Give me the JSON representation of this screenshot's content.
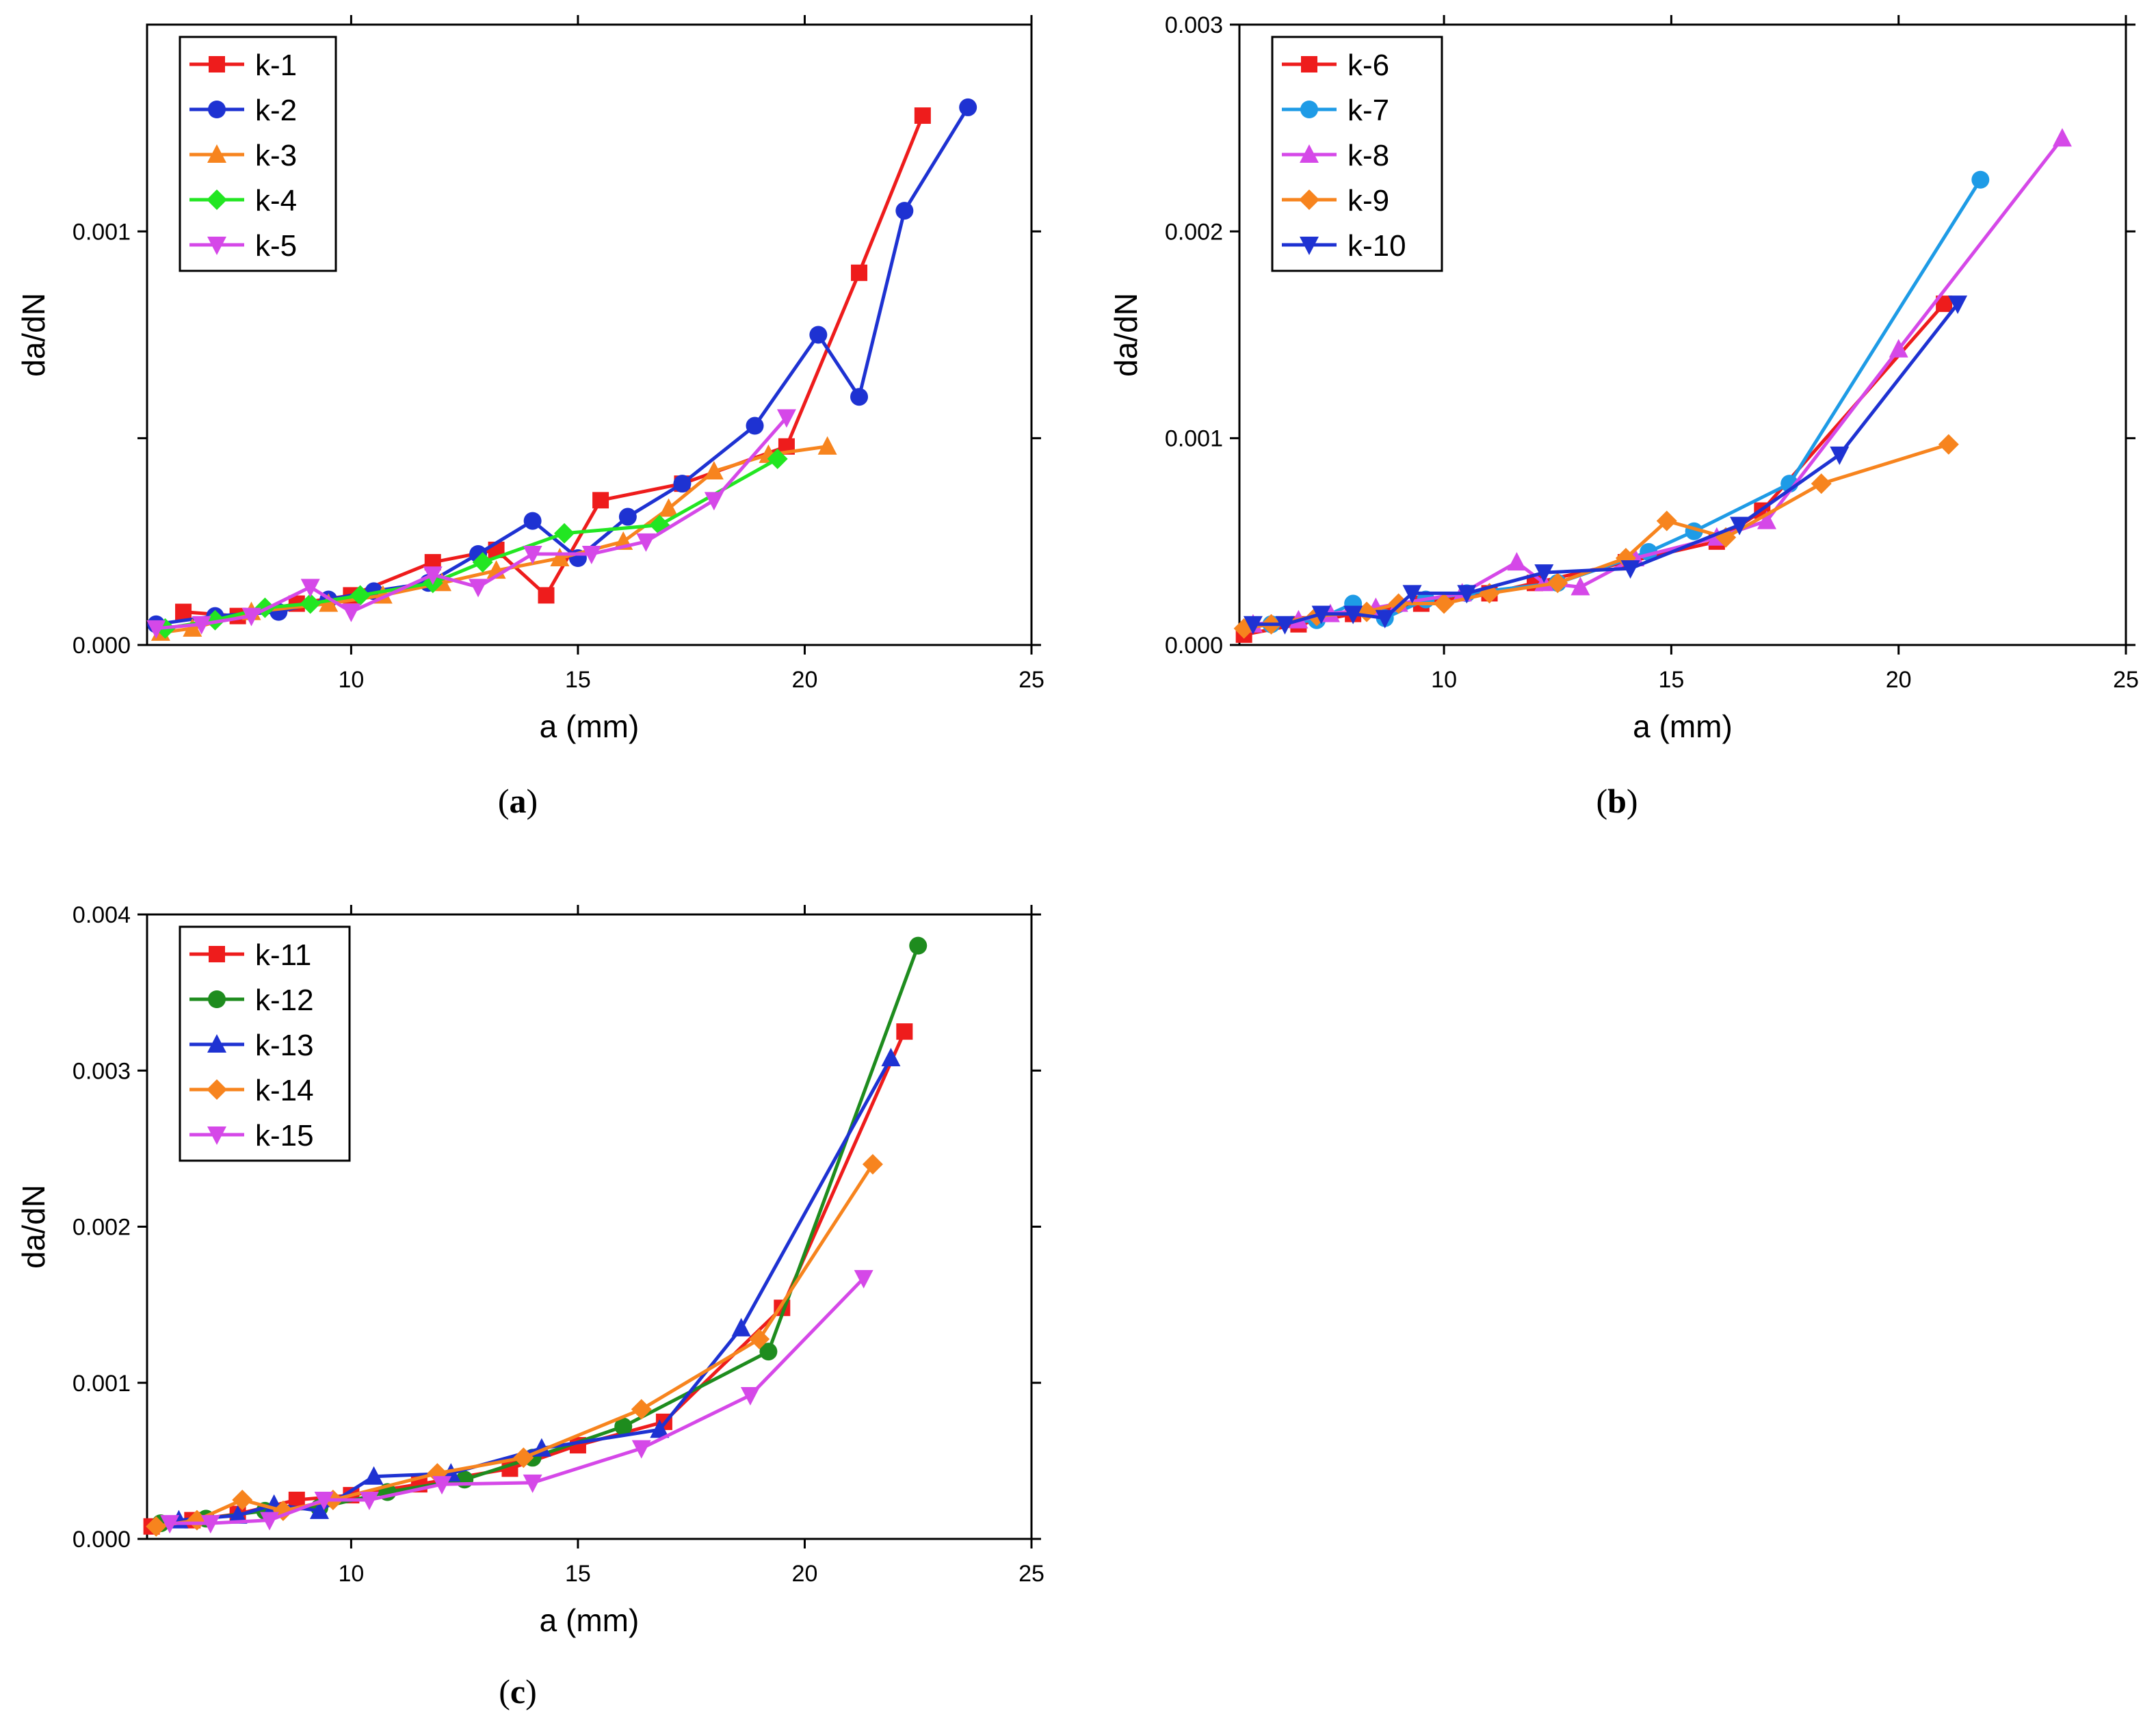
{
  "chart_data": [
    {
      "type": "line",
      "panel": "(a)",
      "caption_letter": "a",
      "xlabel": "a (mm)",
      "ylabel": "da/dN",
      "xlim": [
        5.5,
        25
      ],
      "ylim": [
        0,
        0.0015
      ],
      "xticks": [
        10,
        15,
        20,
        25
      ],
      "xtick_labels": [
        "10",
        "15",
        "20",
        "25"
      ],
      "yticks": [
        0,
        0.001
      ],
      "ytick_labels": [
        "0.000",
        "0.001"
      ],
      "yminor": [
        0.0005
      ],
      "legend_position": "top-left",
      "series": [
        {
          "name": "k-1",
          "color": "#ee1c1c",
          "marker": "square",
          "x": [
            6.3,
            7.5,
            8.8,
            10.0,
            11.8,
            13.2,
            14.3,
            15.5,
            17.3,
            19.6,
            21.2,
            22.6
          ],
          "y": [
            8e-05,
            7e-05,
            0.0001,
            0.00012,
            0.0002,
            0.00023,
            0.00012,
            0.00035,
            0.00039,
            0.00048,
            0.0009,
            0.00128
          ]
        },
        {
          "name": "k-2",
          "color": "#1e32d2",
          "marker": "circle",
          "x": [
            5.7,
            7.0,
            8.4,
            9.5,
            10.5,
            11.7,
            12.8,
            14.0,
            15.0,
            16.1,
            17.3,
            18.9,
            20.3,
            21.2,
            22.2,
            23.6
          ],
          "y": [
            5e-05,
            7e-05,
            8e-05,
            0.00011,
            0.00013,
            0.00015,
            0.00022,
            0.0003,
            0.00021,
            0.00031,
            0.00039,
            0.00053,
            0.00075,
            0.0006,
            0.00105,
            0.0013
          ]
        },
        {
          "name": "k-3",
          "color": "#f7841e",
          "marker": "triangle-up",
          "x": [
            5.8,
            6.5,
            7.8,
            9.5,
            10.7,
            12.0,
            13.2,
            14.6,
            16.0,
            17.0,
            18.0,
            19.2,
            20.5
          ],
          "y": [
            3e-05,
            4e-05,
            8e-05,
            0.0001,
            0.00012,
            0.00015,
            0.00018,
            0.00021,
            0.00025,
            0.00033,
            0.00042,
            0.00046,
            0.00048
          ]
        },
        {
          "name": "k-4",
          "color": "#22e622",
          "marker": "diamond",
          "x": [
            5.9,
            7.0,
            8.1,
            9.1,
            10.2,
            11.8,
            12.9,
            14.7,
            16.8,
            19.4
          ],
          "y": [
            4e-05,
            6e-05,
            9e-05,
            0.0001,
            0.00012,
            0.00015,
            0.0002,
            0.00027,
            0.00029,
            0.00045
          ]
        },
        {
          "name": "k-5",
          "color": "#d548e8",
          "marker": "triangle-down",
          "x": [
            5.7,
            6.7,
            7.8,
            9.1,
            10.0,
            11.8,
            12.8,
            14.0,
            15.3,
            16.5,
            18.0,
            19.6
          ],
          "y": [
            4e-05,
            5e-05,
            7e-05,
            0.00014,
            8e-05,
            0.00017,
            0.00014,
            0.00022,
            0.00022,
            0.00025,
            0.00035,
            0.00055
          ]
        }
      ]
    },
    {
      "type": "line",
      "panel": "(b)",
      "caption_letter": "b",
      "xlabel": "a (mm)",
      "ylabel": "da/dN",
      "xlim": [
        5.5,
        25
      ],
      "ylim": [
        0,
        0.003
      ],
      "xticks": [
        10,
        15,
        20,
        25
      ],
      "xtick_labels": [
        "10",
        "15",
        "20",
        "25"
      ],
      "yticks": [
        0,
        0.001,
        0.002,
        0.003
      ],
      "ytick_labels": [
        "0.000",
        "0.001",
        "0.002",
        "0.003"
      ],
      "yminor": [],
      "legend_position": "top-left",
      "series": [
        {
          "name": "k-6",
          "color": "#ee1c1c",
          "marker": "square",
          "x": [
            5.6,
            6.8,
            8.0,
            9.5,
            11.0,
            12.0,
            14.0,
            16.0,
            17.0,
            21.0
          ],
          "y": [
            5e-05,
            0.0001,
            0.00015,
            0.0002,
            0.00025,
            0.0003,
            0.0004,
            0.0005,
            0.00065,
            0.00165
          ]
        },
        {
          "name": "k-7",
          "color": "#1e9be6",
          "marker": "circle",
          "x": [
            6.2,
            7.2,
            8.0,
            8.7,
            9.6,
            10.5,
            12.5,
            14.5,
            15.5,
            17.6,
            21.8
          ],
          "y": [
            0.0001,
            0.00012,
            0.0002,
            0.00013,
            0.00022,
            0.00025,
            0.0003,
            0.00045,
            0.00055,
            0.00078,
            0.00225
          ]
        },
        {
          "name": "k-8",
          "color": "#d548e8",
          "marker": "triangle-up",
          "x": [
            5.8,
            6.8,
            7.5,
            8.5,
            9.0,
            10.4,
            11.6,
            12.2,
            13.0,
            14.2,
            16.0,
            17.1,
            20.0,
            23.6
          ],
          "y": [
            0.0001,
            0.00012,
            0.00015,
            0.00018,
            0.0002,
            0.00025,
            0.0004,
            0.0003,
            0.00028,
            0.00042,
            0.00052,
            0.0006,
            0.00143,
            0.00245
          ]
        },
        {
          "name": "k-9",
          "color": "#f7841e",
          "marker": "diamond",
          "x": [
            5.6,
            6.2,
            7.2,
            8.3,
            9.0,
            10.0,
            11.0,
            12.5,
            14.0,
            14.9,
            16.2,
            18.3,
            21.1
          ],
          "y": [
            8e-05,
            0.0001,
            0.00014,
            0.00016,
            0.0002,
            0.0002,
            0.00025,
            0.0003,
            0.00042,
            0.0006,
            0.00052,
            0.00078,
            0.00097
          ]
        },
        {
          "name": "k-10",
          "color": "#1e32d2",
          "marker": "triangle-down",
          "x": [
            5.8,
            6.5,
            7.3,
            8.0,
            8.7,
            9.3,
            10.5,
            12.2,
            14.1,
            16.5,
            18.7,
            21.3
          ],
          "y": [
            0.0001,
            0.0001,
            0.00015,
            0.00015,
            0.00013,
            0.00025,
            0.00025,
            0.00035,
            0.00037,
            0.00058,
            0.00092,
            0.00165
          ]
        }
      ]
    },
    {
      "type": "line",
      "panel": "(c)",
      "caption_letter": "c",
      "xlabel": "a (mm)",
      "ylabel": "da/dN",
      "xlim": [
        5.5,
        25
      ],
      "ylim": [
        0,
        0.004
      ],
      "xticks": [
        10,
        15,
        20,
        25
      ],
      "xtick_labels": [
        "10",
        "15",
        "20",
        "25"
      ],
      "yticks": [
        0,
        0.001,
        0.002,
        0.003,
        0.004
      ],
      "ytick_labels": [
        "0.000",
        "0.001",
        "0.002",
        "0.003",
        "0.004"
      ],
      "yminor": [],
      "legend_position": "top-left",
      "series": [
        {
          "name": "k-11",
          "color": "#ee1c1c",
          "marker": "square",
          "x": [
            5.6,
            6.5,
            7.5,
            8.8,
            10.0,
            11.5,
            13.5,
            15.0,
            16.9,
            19.5,
            22.2
          ],
          "y": [
            8e-05,
            0.00012,
            0.00016,
            0.00025,
            0.00028,
            0.00035,
            0.00045,
            0.0006,
            0.00075,
            0.00148,
            0.00325
          ]
        },
        {
          "name": "k-12",
          "color": "#1e8c1e",
          "marker": "circle",
          "x": [
            5.8,
            6.8,
            8.1,
            9.3,
            10.8,
            12.5,
            14.0,
            16.0,
            19.2,
            22.5
          ],
          "y": [
            0.0001,
            0.00013,
            0.00018,
            0.0002,
            0.0003,
            0.00038,
            0.00052,
            0.00072,
            0.0012,
            0.0038
          ]
        },
        {
          "name": "k-13",
          "color": "#1e32d2",
          "marker": "triangle-up",
          "x": [
            6.2,
            7.5,
            8.3,
            9.3,
            10.5,
            12.2,
            14.2,
            16.8,
            18.6,
            21.9
          ],
          "y": [
            0.00012,
            0.00015,
            0.00022,
            0.00018,
            0.0004,
            0.00042,
            0.00058,
            0.0007,
            0.00135,
            0.00308
          ]
        },
        {
          "name": "k-14",
          "color": "#f7841e",
          "marker": "diamond",
          "x": [
            5.7,
            6.6,
            7.6,
            8.5,
            9.6,
            11.9,
            13.8,
            16.4,
            19.0,
            21.5
          ],
          "y": [
            8e-05,
            0.00012,
            0.00025,
            0.00018,
            0.00025,
            0.00042,
            0.00052,
            0.00083,
            0.00128,
            0.0024
          ]
        },
        {
          "name": "k-15",
          "color": "#d548e8",
          "marker": "triangle-down",
          "x": [
            6.0,
            6.9,
            8.2,
            9.4,
            10.4,
            12.0,
            14.0,
            16.4,
            18.8,
            21.3
          ],
          "y": [
            0.0001,
            0.0001,
            0.00012,
            0.00025,
            0.00025,
            0.00035,
            0.00036,
            0.00058,
            0.00092,
            0.00167
          ]
        }
      ]
    }
  ]
}
